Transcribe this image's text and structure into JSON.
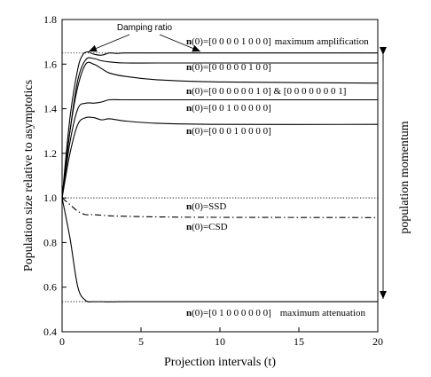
{
  "chart_data": {
    "type": "line",
    "xlabel": "Projection intervals (t)",
    "ylabel": "Population size relative to asymptotics",
    "xlim": [
      0,
      20
    ],
    "ylim": [
      0.4,
      1.8
    ],
    "xticks": [
      "0",
      "5",
      "10",
      "15",
      "20"
    ],
    "yticks": [
      "0.4",
      "0.6",
      "0.8",
      "1.0",
      "1.2",
      "1.4",
      "1.6",
      "1.8"
    ],
    "grid": false,
    "series": [
      {
        "label": "n(0)=[0 0 0 0 1 0 0 0]",
        "annotation": "maximum amplification",
        "x": [
          0,
          0.5,
          1,
          1.3,
          1.6,
          2,
          2.5,
          3,
          3.5,
          4,
          6,
          10,
          20
        ],
        "y": [
          1.0,
          1.36,
          1.58,
          1.64,
          1.655,
          1.645,
          1.64,
          1.65,
          1.648,
          1.65,
          1.65,
          1.65,
          1.65
        ]
      },
      {
        "label": "n(0)=[0 0 0 0 0 1 0 0]",
        "x": [
          0,
          0.5,
          1,
          1.5,
          2,
          2.5,
          3,
          4,
          6,
          10,
          20
        ],
        "y": [
          1.0,
          1.3,
          1.53,
          1.62,
          1.625,
          1.615,
          1.61,
          1.605,
          1.605,
          1.605,
          1.605
        ]
      },
      {
        "label": "n(0)=[0 0 0 0 0 0 1 0] & [0 0 0 0 0 0 0 1]",
        "x": [
          0,
          0.5,
          1,
          1.5,
          2,
          2.5,
          3,
          4,
          6,
          10,
          20
        ],
        "y": [
          1.0,
          1.3,
          1.5,
          1.6,
          1.6,
          1.58,
          1.56,
          1.545,
          1.53,
          1.52,
          1.515
        ]
      },
      {
        "label": "n(0)=[0 0 1 0 0 0 0 0]",
        "x": [
          0,
          0.5,
          1,
          1.5,
          2,
          2.5,
          3,
          4,
          6,
          10,
          20
        ],
        "y": [
          1.0,
          1.25,
          1.4,
          1.425,
          1.425,
          1.43,
          1.44,
          1.44,
          1.44,
          1.44,
          1.44
        ]
      },
      {
        "label": "n(0)=[0 0 0 1 0 0 0 0]",
        "x": [
          0,
          0.5,
          1,
          1.5,
          2,
          2.5,
          3,
          4,
          6,
          10,
          20
        ],
        "y": [
          1.0,
          1.2,
          1.33,
          1.36,
          1.36,
          1.35,
          1.355,
          1.345,
          1.335,
          1.33,
          1.33
        ]
      },
      {
        "label": "n(0)=SSD",
        "style": "dotted",
        "x": [
          0,
          20
        ],
        "y": [
          1.0,
          1.0
        ]
      },
      {
        "label": "n(0)=CSD",
        "style": "dash-dot",
        "x": [
          0,
          0.5,
          1,
          1.5,
          2,
          3,
          4,
          6,
          10,
          20
        ],
        "y": [
          1.0,
          0.97,
          0.94,
          0.925,
          0.925,
          0.92,
          0.918,
          0.915,
          0.913,
          0.912
        ]
      },
      {
        "label": "n(0)=[0 1 0 0 0 0 0 0]",
        "annotation": "maximum attenuation",
        "x": [
          0,
          0.5,
          1,
          1.5,
          2,
          2.5,
          3,
          4,
          6,
          10,
          20
        ],
        "y": [
          1.0,
          0.82,
          0.6,
          0.54,
          0.535,
          0.535,
          0.534,
          0.535,
          0.535,
          0.535,
          0.535
        ]
      }
    ],
    "reference_lines": [
      {
        "y": 1.65,
        "style": "dotted"
      },
      {
        "y": 1.0,
        "style": "dotted"
      },
      {
        "y": 0.535,
        "style": "dotted"
      }
    ],
    "annotations": {
      "damping_ratio": "Damping ratio",
      "population_momentum": "population momentum"
    },
    "label_prefix": "n",
    "label_texts": {
      "ampl": "(0)=[0 0 0 0 1 0 0 0]",
      "ampl_note": "maximum amplification",
      "s5": "(0)=[0 0 0 0 0 1 0 0]",
      "s6": "(0)=[0 0 0 0 0 0 1 0] & [0 0 0 0 0 0 0 1]",
      "s2": "(0)=[0 0 1 0 0 0 0 0]",
      "s3": "(0)=[0 0 0 1 0 0 0 0]",
      "ssd": "(0)=SSD",
      "csd": "(0)=CSD",
      "atten": "(0)=[0 1 0 0 0 0 0 0]",
      "atten_note": "maximum attenuation"
    }
  }
}
